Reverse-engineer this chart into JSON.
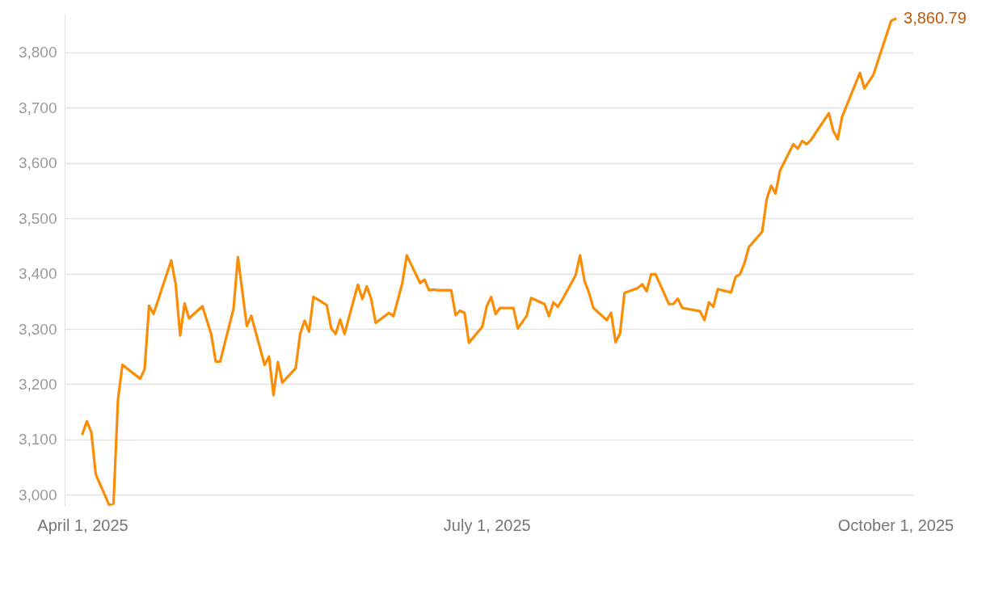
{
  "chart_data": {
    "type": "line",
    "x": [
      "2025-04-01",
      "2025-04-02",
      "2025-04-03",
      "2025-04-04",
      "2025-04-07",
      "2025-04-08",
      "2025-04-09",
      "2025-04-10",
      "2025-04-14",
      "2025-04-15",
      "2025-04-16",
      "2025-04-17",
      "2025-04-21",
      "2025-04-22",
      "2025-04-23",
      "2025-04-24",
      "2025-04-25",
      "2025-04-28",
      "2025-04-30",
      "2025-05-01",
      "2025-05-02",
      "2025-05-05",
      "2025-05-06",
      "2025-05-08",
      "2025-05-09",
      "2025-05-12",
      "2025-05-13",
      "2025-05-14",
      "2025-05-15",
      "2025-05-16",
      "2025-05-19",
      "2025-05-20",
      "2025-05-21",
      "2025-05-22",
      "2025-05-23",
      "2025-05-26",
      "2025-05-27",
      "2025-05-28",
      "2025-05-29",
      "2025-05-30",
      "2025-06-02",
      "2025-06-03",
      "2025-06-04",
      "2025-06-05",
      "2025-06-06",
      "2025-06-09",
      "2025-06-10",
      "2025-06-12",
      "2025-06-13",
      "2025-06-16",
      "2025-06-17",
      "2025-06-18",
      "2025-06-19",
      "2025-06-20",
      "2025-06-23",
      "2025-06-24",
      "2025-06-25",
      "2025-06-26",
      "2025-06-27",
      "2025-06-30",
      "2025-07-01",
      "2025-07-02",
      "2025-07-03",
      "2025-07-04",
      "2025-07-07",
      "2025-07-08",
      "2025-07-10",
      "2025-07-11",
      "2025-07-14",
      "2025-07-15",
      "2025-07-16",
      "2025-07-17",
      "2025-07-18",
      "2025-07-21",
      "2025-07-22",
      "2025-07-23",
      "2025-07-24",
      "2025-07-25",
      "2025-07-28",
      "2025-07-29",
      "2025-07-30",
      "2025-07-31",
      "2025-08-01",
      "2025-08-04",
      "2025-08-05",
      "2025-08-06",
      "2025-08-07",
      "2025-08-08",
      "2025-08-11",
      "2025-08-12",
      "2025-08-13",
      "2025-08-14",
      "2025-08-18",
      "2025-08-19",
      "2025-08-20",
      "2025-08-21",
      "2025-08-22",
      "2025-08-25",
      "2025-08-26",
      "2025-08-27",
      "2025-08-28",
      "2025-08-29",
      "2025-09-01",
      "2025-09-02",
      "2025-09-03",
      "2025-09-04",
      "2025-09-05",
      "2025-09-08",
      "2025-09-09",
      "2025-09-10",
      "2025-09-11",
      "2025-09-12",
      "2025-09-16",
      "2025-09-17",
      "2025-09-18",
      "2025-09-19",
      "2025-09-23",
      "2025-09-24",
      "2025-09-26",
      "2025-09-30",
      "2025-10-01"
    ],
    "series": [
      {
        "color": "#f98e06",
        "values": [
          3110,
          3133,
          3113,
          3037,
          2982,
          2984,
          3172,
          3235,
          3210,
          3227,
          3342,
          3327,
          3424,
          3380,
          3288,
          3346,
          3319,
          3341,
          3290,
          3241,
          3241,
          3336,
          3430,
          3305,
          3324,
          3235,
          3250,
          3180,
          3240,
          3203,
          3229,
          3291,
          3315,
          3295,
          3358,
          3343,
          3301,
          3291,
          3317,
          3291,
          3380,
          3354,
          3377,
          3354,
          3311,
          3329,
          3323,
          3383,
          3433,
          3383,
          3389,
          3370,
          3371,
          3370,
          3370,
          3325,
          3333,
          3329,
          3275,
          3304,
          3341,
          3358,
          3327,
          3338,
          3338,
          3301,
          3324,
          3356,
          3345,
          3323,
          3348,
          3340,
          3353,
          3397,
          3433,
          3387,
          3366,
          3338,
          3316,
          3329,
          3276,
          3292,
          3365,
          3374,
          3381,
          3368,
          3399,
          3399,
          3345,
          3345,
          3355,
          3338,
          3332,
          3316,
          3348,
          3340,
          3372,
          3366,
          3394,
          3399,
          3419,
          3448,
          3476,
          3534,
          3559,
          3545,
          3586,
          3634,
          3626,
          3640,
          3634,
          3642,
          3690,
          3658,
          3643,
          3684,
          3763,
          3735,
          3759,
          3857,
          3860.79
        ]
      }
    ],
    "xlim": [
      "2025-03-28",
      "2025-10-05"
    ],
    "xticks": [
      {
        "value": "2025-04-01",
        "label": "April 1, 2025"
      },
      {
        "value": "2025-07-01",
        "label": "July 1, 2025"
      },
      {
        "value": "2025-10-01",
        "label": "October 1, 2025"
      }
    ],
    "ylim": [
      2980,
      3870
    ],
    "yticks": [
      {
        "value": 3000,
        "label": "3,000"
      },
      {
        "value": 3100,
        "label": "3,100"
      },
      {
        "value": 3200,
        "label": "3,200"
      },
      {
        "value": 3300,
        "label": "3,300"
      },
      {
        "value": 3400,
        "label": "3,400"
      },
      {
        "value": 3500,
        "label": "3,500"
      },
      {
        "value": 3600,
        "label": "3,600"
      },
      {
        "value": 3700,
        "label": "3,700"
      },
      {
        "value": 3800,
        "label": "3,800"
      }
    ],
    "grid": "y",
    "annotations": [
      {
        "text": "3,860.79",
        "x": "2025-10-01",
        "y": 3860.79
      }
    ]
  }
}
